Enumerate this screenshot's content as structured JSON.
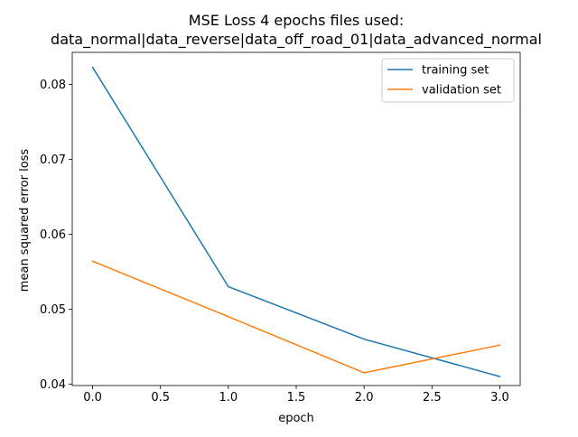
{
  "chart_data": {
    "type": "line",
    "title_line1": "MSE Loss 4 epochs files used:",
    "title_line2": "data_normal|data_reverse|data_off_road_01|data_advanced_normal",
    "xlabel": "epoch",
    "ylabel": "mean squared error loss",
    "xlim": [
      -0.15,
      3.15
    ],
    "ylim": [
      0.0398,
      0.0843
    ],
    "x_ticks": [
      0.0,
      0.5,
      1.0,
      1.5,
      2.0,
      2.5,
      3.0
    ],
    "x_tick_labels": [
      "0.0",
      "0.5",
      "1.0",
      "1.5",
      "2.0",
      "2.5",
      "3.0"
    ],
    "y_ticks": [
      0.04,
      0.05,
      0.06,
      0.07,
      0.08
    ],
    "y_tick_labels": [
      "0.04",
      "0.05",
      "0.06",
      "0.07",
      "0.08"
    ],
    "grid": false,
    "legend_position": "top-right",
    "series": [
      {
        "name": "training set",
        "color": "#1f77b4",
        "x": [
          0,
          1,
          2,
          3
        ],
        "values": [
          0.0823,
          0.053,
          0.046,
          0.041
        ]
      },
      {
        "name": "validation set",
        "color": "#ff7f0e",
        "x": [
          0,
          1,
          2,
          3
        ],
        "values": [
          0.0564,
          0.049,
          0.0415,
          0.0452
        ]
      }
    ]
  }
}
